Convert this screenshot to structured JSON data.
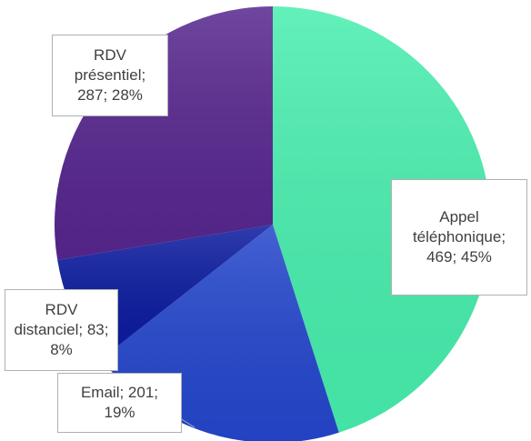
{
  "chart_data": {
    "type": "pie",
    "values": [
      469,
      201,
      83,
      287
    ],
    "value_labels": [
      "Appel téléphonique; 469; 45%",
      "Email; 201; 19%",
      "RDV distanciel; 83; 8%",
      "RDV présentiel; 287; 28%"
    ],
    "colors": [
      "#48eeae",
      "#2446cc",
      "#0a1a9e",
      "#56268e"
    ]
  }
}
